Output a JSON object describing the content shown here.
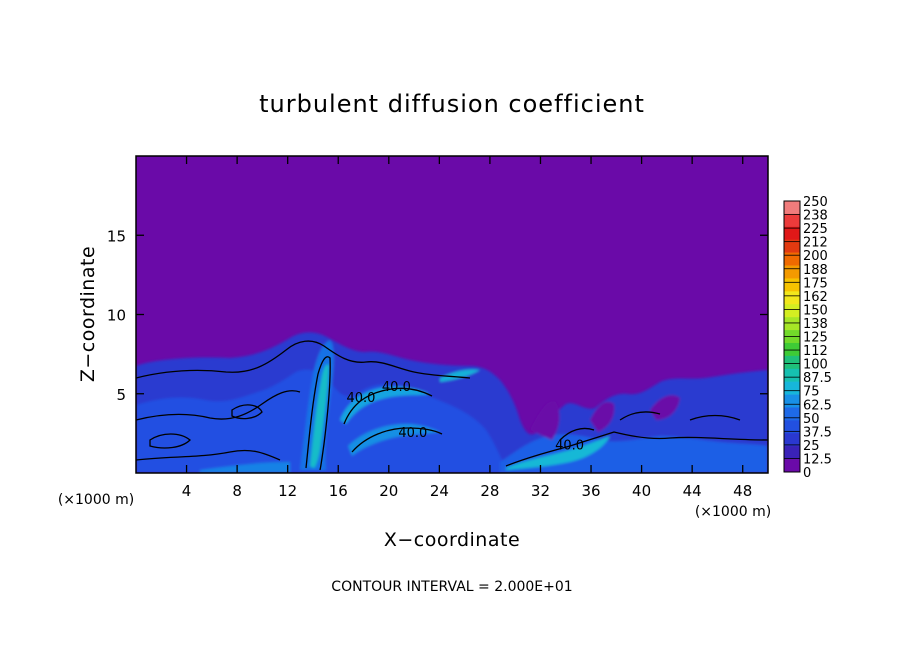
{
  "chart_data": {
    "type": "heatmap",
    "title": "turbulent diffusion coefficient",
    "xlabel": "X−coordinate",
    "ylabel": "Z−coordinate",
    "x_unit_left": "(×1000 m)",
    "x_unit_right": "(×1000 m)",
    "footer": "CONTOUR INTERVAL = 2.000E+01",
    "xlim": [
      0,
      50
    ],
    "ylim": [
      0,
      20
    ],
    "x_ticks": [
      4,
      8,
      12,
      16,
      20,
      24,
      28,
      32,
      36,
      40,
      44,
      48
    ],
    "y_ticks": [
      5,
      10,
      15
    ],
    "colorbar": {
      "labels": [
        "250",
        "238",
        "225",
        "212",
        "200",
        "188",
        "175",
        "162",
        "150",
        "138",
        "125",
        "112",
        "100",
        "87.5",
        "75",
        "62.5",
        "50",
        "37.5",
        "25",
        "12.5",
        "0"
      ],
      "colors": [
        "#f07c7c",
        "#ec3b3b",
        "#e01818",
        "#e23a10",
        "#f06a00",
        "#f49a00",
        "#f7c300",
        "#f2e81c",
        "#d4ee22",
        "#a6e626",
        "#72da2a",
        "#3ecb36",
        "#1fc07a",
        "#16c0b0",
        "#17b6da",
        "#1890e6",
        "#1e6ae8",
        "#2250e0",
        "#2a38d0",
        "#3a22b8",
        "#6a0aa8"
      ]
    },
    "contour_labels": [
      {
        "text": "40.0",
        "x": 20.6,
        "z": 5.5
      },
      {
        "text": "40.0",
        "x": 17.8,
        "z": 4.8
      },
      {
        "text": "40.0",
        "x": 21.9,
        "z": 2.6
      },
      {
        "text": "40.0",
        "x": 34.3,
        "z": 1.8
      }
    ]
  }
}
